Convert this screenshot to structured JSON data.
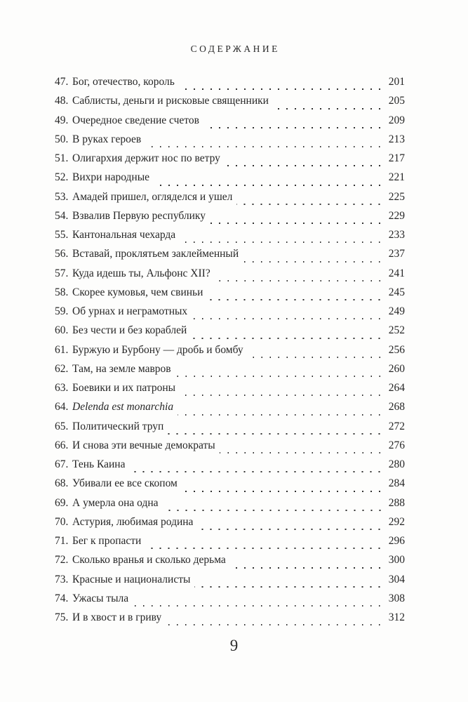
{
  "page": {
    "header": "СОДЕРЖАНИЕ",
    "folio": "9"
  },
  "toc": {
    "entries": [
      {
        "num": "47.",
        "title": "Бог, отечество, король",
        "page": "201",
        "italic": false
      },
      {
        "num": "48.",
        "title": "Саблисты, деньги и рисковые священники",
        "page": "205",
        "italic": false
      },
      {
        "num": "49.",
        "title": "Очередное сведение счетов",
        "page": "209",
        "italic": false
      },
      {
        "num": "50.",
        "title": "В руках героев",
        "page": "213",
        "italic": false
      },
      {
        "num": "51.",
        "title": "Олигархия держит нос по ветру",
        "page": "217",
        "italic": false
      },
      {
        "num": "52.",
        "title": "Вихри народные",
        "page": "221",
        "italic": false
      },
      {
        "num": "53.",
        "title": "Амадей пришел, огляделся и ушел",
        "page": "225",
        "italic": false
      },
      {
        "num": "54.",
        "title": "Взвалив Первую республику",
        "page": "229",
        "italic": false
      },
      {
        "num": "55.",
        "title": "Кантональная чехарда",
        "page": "233",
        "italic": false
      },
      {
        "num": "56.",
        "title": "Вставай, проклятьем заклейменный",
        "page": "237",
        "italic": false
      },
      {
        "num": "57.",
        "title": "Куда идешь ты, Альфонс XII?",
        "page": "241",
        "italic": false
      },
      {
        "num": "58.",
        "title": "Скорее кумовья, чем свиньи",
        "page": "245",
        "italic": false
      },
      {
        "num": "59.",
        "title": "Об урнах и неграмотных",
        "page": "249",
        "italic": false
      },
      {
        "num": "60.",
        "title": "Без чести и без кораблей",
        "page": "252",
        "italic": false
      },
      {
        "num": "61.",
        "title": "Буржую и Бурбону — дробь и бомбу",
        "page": "256",
        "italic": false
      },
      {
        "num": "62.",
        "title": "Там, на земле мавров",
        "page": "260",
        "italic": false
      },
      {
        "num": "63.",
        "title": "Боевики и их патроны",
        "page": "264",
        "italic": false
      },
      {
        "num": "64.",
        "title": "Delenda est monarchia",
        "page": "268",
        "italic": true
      },
      {
        "num": "65.",
        "title": "Политический труп",
        "page": "272",
        "italic": false
      },
      {
        "num": "66.",
        "title": "И снова эти вечные демократы",
        "page": "276",
        "italic": false
      },
      {
        "num": "67.",
        "title": "Тень Каина",
        "page": "280",
        "italic": false
      },
      {
        "num": "68.",
        "title": "Убивали ее все скопом",
        "page": "284",
        "italic": false
      },
      {
        "num": "69.",
        "title": "А умерла она одна",
        "page": "288",
        "italic": false
      },
      {
        "num": "70.",
        "title": "Астурия, любимая родина",
        "page": "292",
        "italic": false
      },
      {
        "num": "71.",
        "title": "Бег к пропасти",
        "page": "296",
        "italic": false
      },
      {
        "num": "72.",
        "title": "Сколько вранья и сколько дерьма",
        "page": "300",
        "italic": false
      },
      {
        "num": "73.",
        "title": "Красные и националисты",
        "page": "304",
        "italic": false
      },
      {
        "num": "74.",
        "title": "Ужасы тыла",
        "page": "308",
        "italic": false
      },
      {
        "num": "75.",
        "title": "И в хвост и в гриву",
        "page": "312",
        "italic": false
      }
    ]
  }
}
